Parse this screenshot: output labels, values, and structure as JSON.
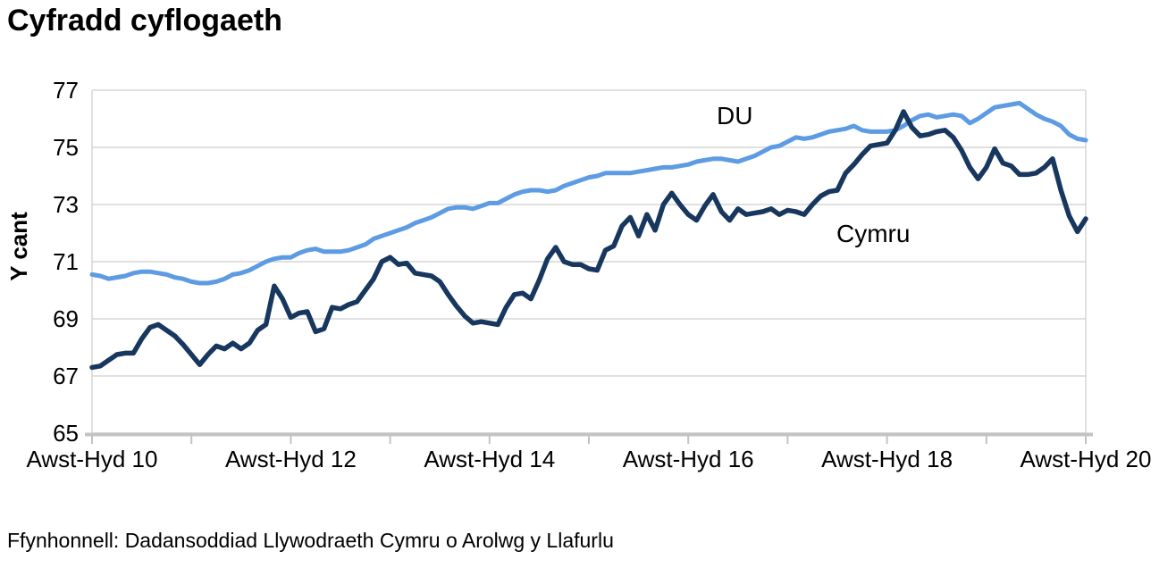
{
  "title": "Cyfradd cyflogaeth",
  "source_note": "Ffynhonnell: Dadansoddiad Llywodraeth Cymru o Arolwg y Llafurlu",
  "colors": {
    "background": "#FFFFFF",
    "gridline": "#D6D6D6",
    "axis": "#C3C3C3",
    "text": "#000000",
    "du_line": "#5D9BE3",
    "cymru_line": "#17375E"
  },
  "chart_data": {
    "type": "line",
    "title": "Cyfradd cyflogaeth",
    "ylabel": "Y cant",
    "ylim": [
      65,
      77
    ],
    "y_ticks": [
      77,
      75,
      73,
      71,
      69,
      67,
      65
    ],
    "x_tick_labels": [
      "Awst-Hyd 10",
      "Awst-Hyd 12",
      "Awst-Hyd 14",
      "Awst-Hyd 16",
      "Awst-Hyd 18",
      "Awst-Hyd 20"
    ],
    "x_tick_months": [
      0,
      24,
      48,
      72,
      96,
      120
    ],
    "minor_tick_months": [
      0,
      12,
      24,
      36,
      48,
      60,
      72,
      84,
      96,
      108,
      120
    ],
    "grid": "horizontal",
    "legend_position": "inline-labels",
    "series": [
      {
        "name": "DU",
        "color": "#5D9BE3",
        "values": [
          70.55,
          70.5,
          70.4,
          70.45,
          70.5,
          70.6,
          70.65,
          70.65,
          70.6,
          70.55,
          70.45,
          70.4,
          70.3,
          70.25,
          70.25,
          70.3,
          70.4,
          70.55,
          70.6,
          70.7,
          70.85,
          71.0,
          71.1,
          71.15,
          71.15,
          71.3,
          71.4,
          71.45,
          71.35,
          71.35,
          71.35,
          71.4,
          71.5,
          71.6,
          71.8,
          71.9,
          72.0,
          72.1,
          72.2,
          72.35,
          72.45,
          72.55,
          72.7,
          72.85,
          72.9,
          72.9,
          72.85,
          72.95,
          73.05,
          73.05,
          73.2,
          73.35,
          73.45,
          73.5,
          73.5,
          73.45,
          73.5,
          73.65,
          73.75,
          73.85,
          73.95,
          74.0,
          74.1,
          74.1,
          74.1,
          74.1,
          74.15,
          74.2,
          74.25,
          74.3,
          74.3,
          74.35,
          74.4,
          74.5,
          74.55,
          74.6,
          74.6,
          74.55,
          74.5,
          74.6,
          74.7,
          74.85,
          75.0,
          75.05,
          75.2,
          75.35,
          75.3,
          75.35,
          75.45,
          75.55,
          75.6,
          75.65,
          75.75,
          75.6,
          75.55,
          75.55,
          75.55,
          75.6,
          75.75,
          75.95,
          76.1,
          76.15,
          76.05,
          76.1,
          76.15,
          76.1,
          75.85,
          76.0,
          76.2,
          76.4,
          76.45,
          76.5,
          76.55,
          76.35,
          76.15,
          76.0,
          75.9,
          75.75,
          75.45,
          75.3,
          75.25
        ]
      },
      {
        "name": "Cymru",
        "color": "#17375E",
        "values": [
          67.3,
          67.35,
          67.55,
          67.75,
          67.8,
          67.8,
          68.3,
          68.7,
          68.8,
          68.6,
          68.4,
          68.1,
          67.75,
          67.4,
          67.75,
          68.05,
          67.95,
          68.15,
          67.95,
          68.15,
          68.6,
          68.8,
          70.15,
          69.7,
          69.05,
          69.2,
          69.25,
          68.55,
          68.65,
          69.4,
          69.35,
          69.5,
          69.6,
          70.0,
          70.4,
          71.0,
          71.15,
          70.9,
          70.95,
          70.6,
          70.55,
          70.5,
          70.3,
          69.85,
          69.45,
          69.1,
          68.85,
          68.9,
          68.85,
          68.8,
          69.4,
          69.85,
          69.9,
          69.7,
          70.35,
          71.1,
          71.5,
          71.0,
          70.9,
          70.9,
          70.75,
          70.7,
          71.4,
          71.55,
          72.25,
          72.55,
          71.9,
          72.65,
          72.1,
          73.0,
          73.4,
          73.0,
          72.65,
          72.45,
          72.95,
          73.35,
          72.75,
          72.45,
          72.85,
          72.65,
          72.7,
          72.75,
          72.85,
          72.65,
          72.8,
          72.75,
          72.65,
          73.0,
          73.3,
          73.45,
          73.5,
          74.1,
          74.4,
          74.75,
          75.05,
          75.1,
          75.15,
          75.6,
          76.25,
          75.7,
          75.4,
          75.45,
          75.55,
          75.6,
          75.35,
          74.9,
          74.3,
          73.9,
          74.3,
          74.95,
          74.45,
          74.35,
          74.05,
          74.05,
          74.1,
          74.3,
          74.6,
          73.5,
          72.6,
          72.05,
          72.5
        ]
      }
    ]
  }
}
